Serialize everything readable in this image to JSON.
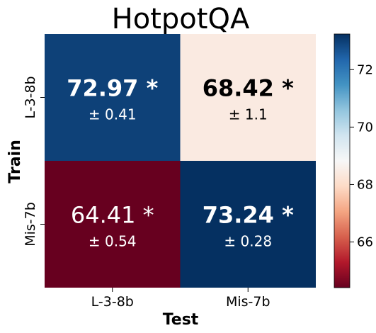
{
  "chart_data": {
    "type": "heatmap",
    "title": "HotpotQA",
    "xlabel": "Test",
    "ylabel": "Train",
    "x_categories": [
      "L-3-8b",
      "Mis-7b"
    ],
    "y_categories": [
      "L-3-8b",
      "Mis-7b"
    ],
    "cells": [
      [
        {
          "value": 72.97,
          "value_label": "72.97 *",
          "std_label": "± 0.41",
          "bold": true
        },
        {
          "value": 68.42,
          "value_label": "68.42 *",
          "std_label": "± 1.1",
          "bold": true
        }
      ],
      [
        {
          "value": 64.41,
          "value_label": "64.41 *",
          "std_label": "± 0.54",
          "bold": false
        },
        {
          "value": 73.24,
          "value_label": "73.24 *",
          "std_label": "± 0.28",
          "bold": true
        }
      ]
    ],
    "colorbar": {
      "colormap": "RdBu",
      "vmin": 64.41,
      "vmax": 73.24,
      "ticks": [
        66,
        68,
        70,
        72
      ],
      "tick_labels": [
        "66",
        "68",
        "70",
        "72"
      ]
    },
    "grid": false,
    "legend": "colorbar-right"
  }
}
